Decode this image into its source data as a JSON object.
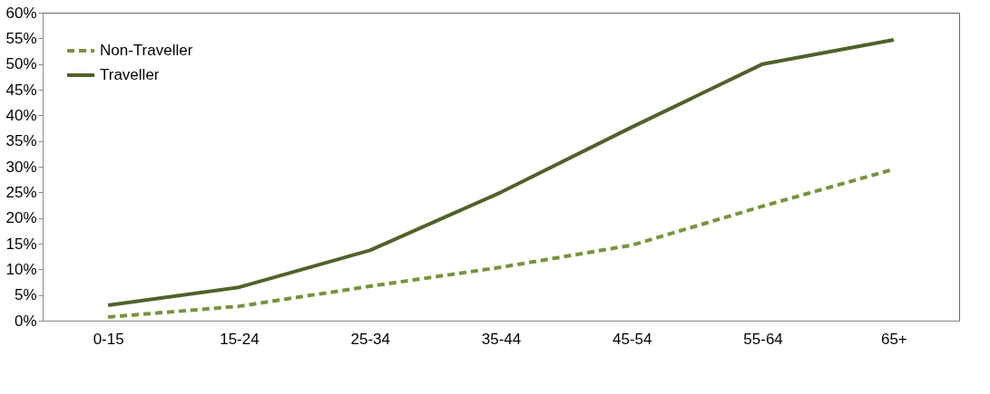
{
  "chart_data": {
    "type": "line",
    "categories": [
      "0-15",
      "15-24",
      "25-34",
      "35-44",
      "45-54",
      "55-64",
      "65+"
    ],
    "series": [
      {
        "name": "Non-Traveller",
        "color": "#77933c",
        "line_style": "dashed",
        "values": [
          0.7,
          2.8,
          6.7,
          10.4,
          14.7,
          22.3,
          29.5
        ]
      },
      {
        "name": "Traveller",
        "color": "#4f6228",
        "line_style": "solid",
        "values": [
          3.0,
          6.5,
          13.7,
          25.0,
          37.7,
          50.0,
          54.7
        ]
      }
    ],
    "ylim": [
      0,
      60
    ],
    "yticks": [
      {
        "value": 0,
        "label": "0%"
      },
      {
        "value": 5,
        "label": "5%"
      },
      {
        "value": 10,
        "label": "10%"
      },
      {
        "value": 15,
        "label": "15%"
      },
      {
        "value": 20,
        "label": "20%"
      },
      {
        "value": 25,
        "label": "25%"
      },
      {
        "value": 30,
        "label": "30%"
      },
      {
        "value": 35,
        "label": "35%"
      },
      {
        "value": 40,
        "label": "40%"
      },
      {
        "value": 45,
        "label": "45%"
      },
      {
        "value": 50,
        "label": "50%"
      },
      {
        "value": 55,
        "label": "55%"
      },
      {
        "value": 60,
        "label": "60%"
      }
    ],
    "grid": false,
    "legend": "top left",
    "marker": "none"
  }
}
